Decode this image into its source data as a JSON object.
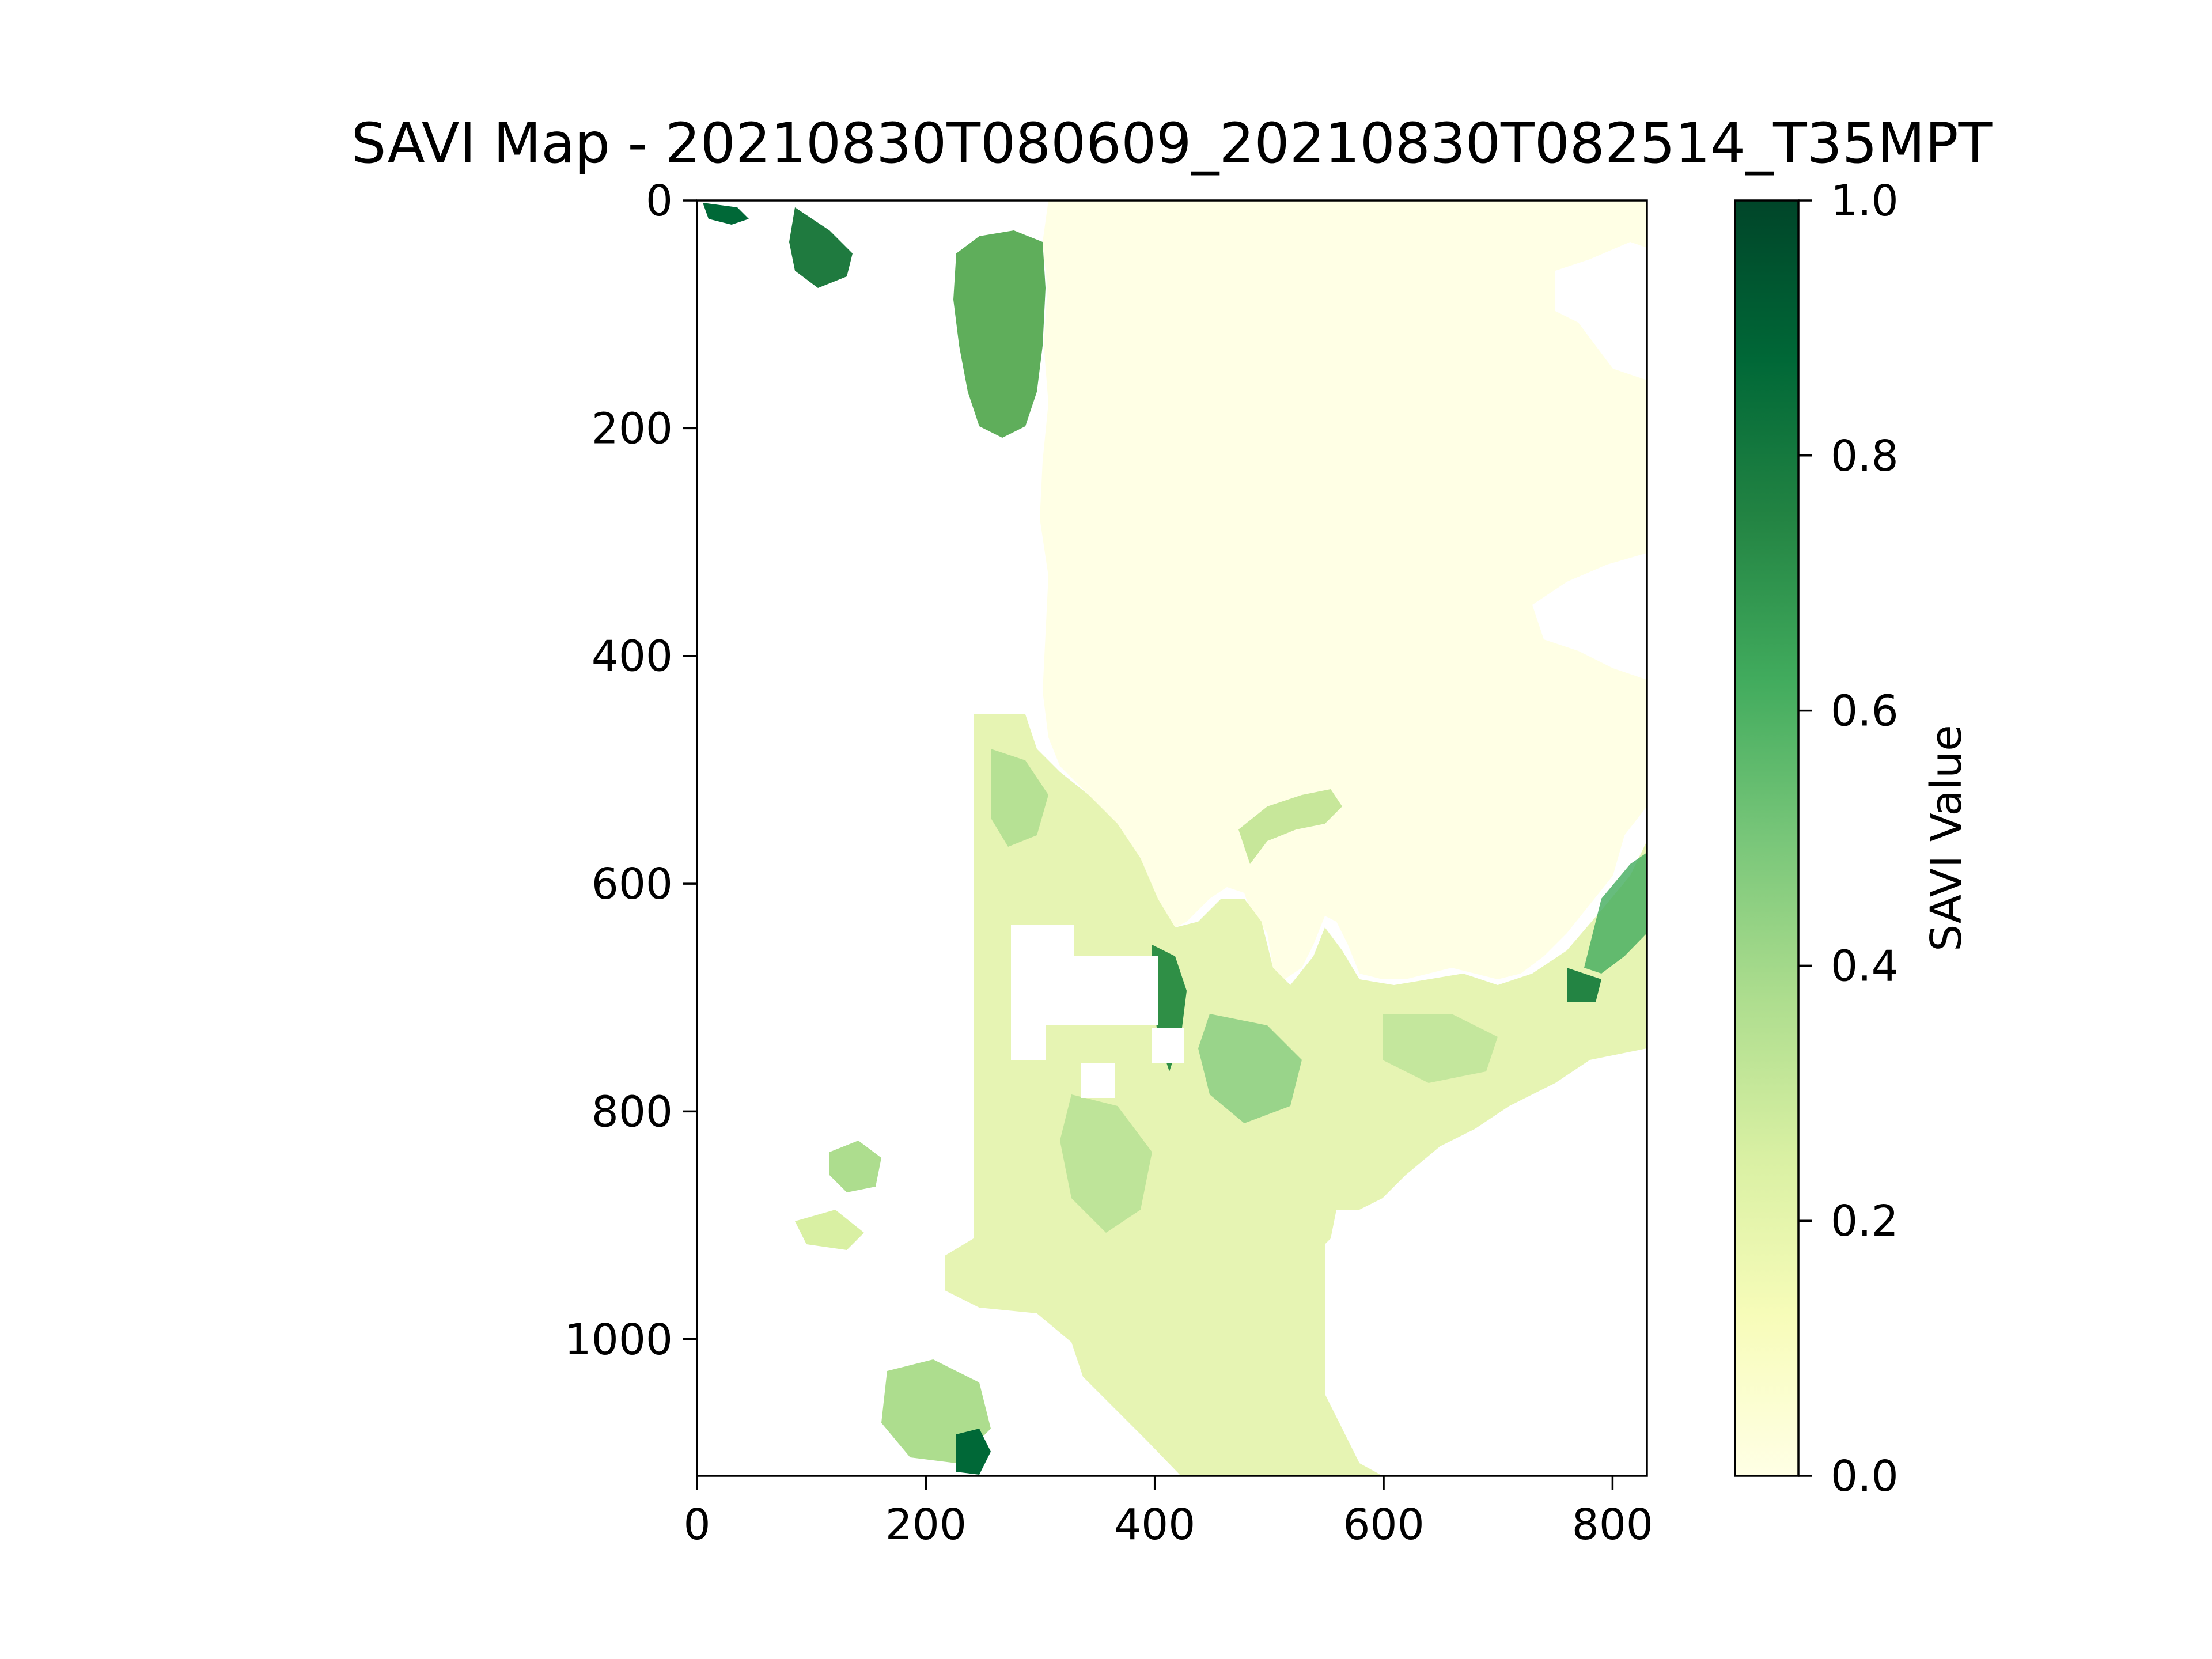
{
  "chart_data": {
    "type": "heatmap",
    "title": "SAVI Map - 20210830T080609_20210830T082514_T35MPT",
    "xlabel": "",
    "ylabel": "",
    "xlim": [
      0,
      830
    ],
    "ylim": [
      1120,
      0
    ],
    "x_ticks": [
      0,
      200,
      400,
      600,
      800
    ],
    "x_tick_labels": [
      "0",
      "200",
      "400",
      "600",
      "800"
    ],
    "y_ticks": [
      0,
      200,
      400,
      600,
      800,
      1000
    ],
    "y_tick_labels": [
      "0",
      "200",
      "400",
      "600",
      "800",
      "1000"
    ],
    "colormap": "YlGn",
    "colormap_stops": [
      "#ffffe5",
      "#f7fcb9",
      "#d9f0a3",
      "#addd8e",
      "#78c679",
      "#41ab5d",
      "#238443",
      "#006837",
      "#004529"
    ],
    "colorbar": {
      "label": "SAVI Value",
      "range": [
        0,
        1
      ],
      "ticks": [
        0.0,
        0.2,
        0.4,
        0.6,
        0.8,
        1.0
      ],
      "tick_labels": [
        "0.0",
        "0.2",
        "0.4",
        "0.6",
        "0.8",
        "1.0"
      ]
    },
    "grid": false,
    "regions": {
      "water_body": {
        "value": 0.0,
        "x_range": [
          300,
          830
        ],
        "y_range": [
          0,
          620
        ]
      },
      "no_data_color": "#ffffff",
      "vegetated_area_typical": [
        0.15,
        0.45
      ],
      "dense_vegetation_max": 1.0
    }
  }
}
